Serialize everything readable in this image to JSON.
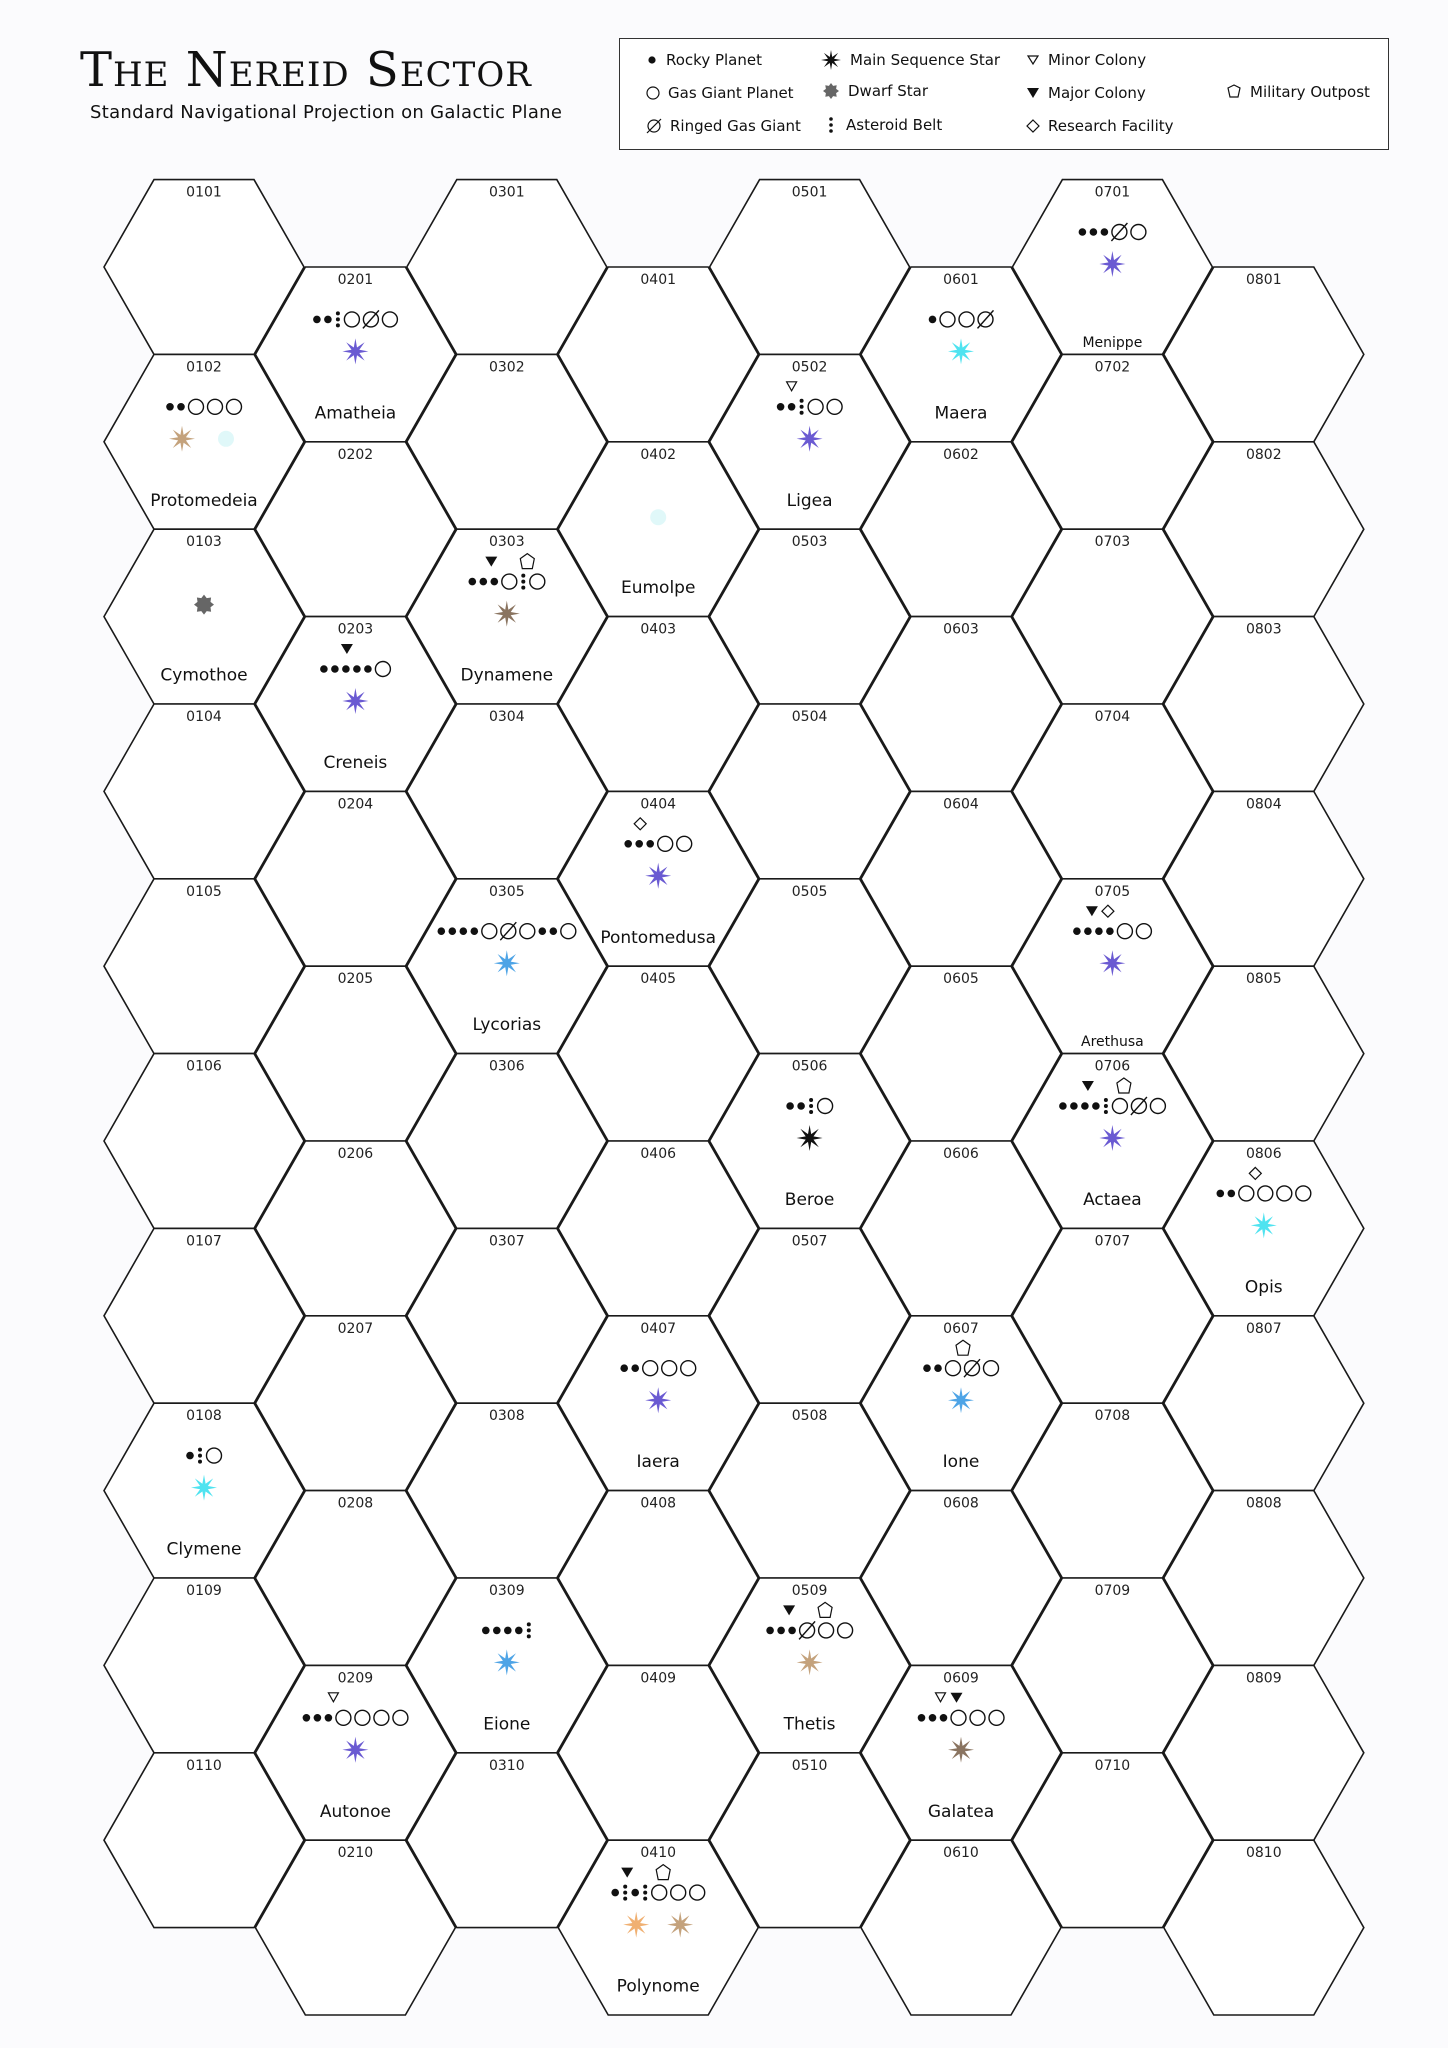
{
  "header": {
    "title": "The Nereid Sector",
    "subtitle": "Standard Navigational Projection on Galactic Plane"
  },
  "legend": {
    "items": [
      {
        "icon": "rocky-planet",
        "label": "Rocky Planet"
      },
      {
        "icon": "gas-giant",
        "label": "Gas Giant Planet"
      },
      {
        "icon": "ringed-gas-giant",
        "label": "Ringed Gas Giant"
      },
      {
        "icon": "main-sequence-star",
        "label": "Main Sequence Star"
      },
      {
        "icon": "dwarf-star",
        "label": "Dwarf Star"
      },
      {
        "icon": "asteroid-belt",
        "label": "Asteroid Belt"
      },
      {
        "icon": "minor-colony",
        "label": "Minor Colony"
      },
      {
        "icon": "major-colony",
        "label": "Major Colony"
      },
      {
        "icon": "research-facility",
        "label": "Research Facility"
      },
      {
        "icon": "military-outpost",
        "label": "Military Outpost"
      }
    ]
  },
  "colors": {
    "hex_stroke": "#1a1a1a",
    "star_violet": "#6a5ad2",
    "star_cyan": "#4fe3f0",
    "star_blue": "#4ea4e6",
    "star_tan": "#c4a27c",
    "star_brown": "#8a7460",
    "star_orange": "#f0b072",
    "star_black": "#111111",
    "dwarf_gray": "#666666"
  },
  "grid": {
    "columns": 8,
    "rows": 10
  },
  "systems": [
    {
      "hex": "0102",
      "name": "Protomedeia",
      "planets": [
        "rocky",
        "rocky",
        "gas",
        "gas",
        "gas"
      ],
      "markers": [],
      "stars": [
        "tan",
        "faint-cyan"
      ]
    },
    {
      "hex": "0103",
      "name": "Cymothoe",
      "planets": [],
      "markers": [],
      "stars": [
        "dwarf"
      ]
    },
    {
      "hex": "0108",
      "name": "Clymene",
      "planets": [
        "rocky",
        "belt",
        "gas"
      ],
      "markers": [],
      "stars": [
        "cyan"
      ]
    },
    {
      "hex": "0201",
      "name": "Amatheia",
      "planets": [
        "rocky",
        "rocky",
        "belt",
        "gas",
        "ringed",
        "gas"
      ],
      "markers": [],
      "stars": [
        "violet"
      ]
    },
    {
      "hex": "0203",
      "name": "Creneis",
      "planets": [
        "rocky",
        "rocky",
        "rocky",
        "rocky",
        "rocky",
        "gas"
      ],
      "markers": [
        "major-colony"
      ],
      "stars": [
        "violet"
      ]
    },
    {
      "hex": "0209",
      "name": "Autonoe",
      "planets": [
        "rocky",
        "rocky",
        "rocky",
        "gas",
        "gas",
        "gas",
        "gas"
      ],
      "markers": [
        "minor-colony"
      ],
      "stars": [
        "violet"
      ]
    },
    {
      "hex": "0303",
      "name": "Dynamene",
      "planets": [
        "rocky",
        "rocky",
        "rocky",
        "gas",
        "belt",
        "gas"
      ],
      "markers": [
        "major-colony",
        "military-outpost"
      ],
      "stars": [
        "brown"
      ]
    },
    {
      "hex": "0305",
      "name": "Lycorias",
      "planets": [
        "rocky",
        "rocky",
        "rocky",
        "rocky",
        "gas",
        "ringed",
        "gas",
        "rocky",
        "rocky",
        "gas"
      ],
      "markers": [],
      "stars": [
        "blue"
      ]
    },
    {
      "hex": "0309",
      "name": "Eione",
      "planets": [
        "rocky",
        "rocky",
        "rocky",
        "rocky",
        "belt"
      ],
      "markers": [],
      "stars": [
        "blue"
      ]
    },
    {
      "hex": "0402",
      "name": "Eumolpe",
      "planets": [],
      "markers": [],
      "stars": [
        "faint-cyan"
      ]
    },
    {
      "hex": "0404",
      "name": "Pontomedusa",
      "planets": [
        "rocky",
        "rocky",
        "rocky",
        "gas",
        "gas"
      ],
      "markers": [
        "research-facility"
      ],
      "stars": [
        "violet"
      ]
    },
    {
      "hex": "0407",
      "name": "Iaera",
      "planets": [
        "rocky",
        "rocky",
        "gas",
        "gas",
        "gas"
      ],
      "markers": [],
      "stars": [
        "violet"
      ]
    },
    {
      "hex": "0410",
      "name": "Polynome",
      "planets": [
        "rocky",
        "belt",
        "rocky",
        "belt",
        "gas",
        "gas",
        "gas"
      ],
      "markers": [
        "major-colony",
        "military-outpost"
      ],
      "stars": [
        "orange",
        "tan"
      ]
    },
    {
      "hex": "0502",
      "name": "Ligea",
      "planets": [
        "rocky",
        "rocky",
        "belt",
        "gas",
        "gas"
      ],
      "markers": [
        "minor-colony"
      ],
      "stars": [
        "violet"
      ]
    },
    {
      "hex": "0506",
      "name": "Beroe",
      "planets": [
        "rocky",
        "rocky",
        "belt",
        "gas"
      ],
      "markers": [],
      "stars": [
        "black"
      ]
    },
    {
      "hex": "0509",
      "name": "Thetis",
      "planets": [
        "rocky",
        "rocky",
        "rocky",
        "ringed",
        "gas",
        "gas"
      ],
      "markers": [
        "major-colony",
        "military-outpost"
      ],
      "stars": [
        "tan"
      ]
    },
    {
      "hex": "0601",
      "name": "Maera",
      "planets": [
        "rocky",
        "gas",
        "gas",
        "ringed"
      ],
      "markers": [],
      "stars": [
        "cyan"
      ]
    },
    {
      "hex": "0607",
      "name": "Ione",
      "planets": [
        "rocky",
        "rocky",
        "gas",
        "ringed",
        "gas"
      ],
      "markers": [
        "military-outpost"
      ],
      "stars": [
        "blue"
      ]
    },
    {
      "hex": "0609",
      "name": "Galatea",
      "planets": [
        "rocky",
        "rocky",
        "rocky",
        "gas",
        "gas",
        "gas"
      ],
      "markers": [
        "minor-colony",
        "major-colony"
      ],
      "stars": [
        "brown"
      ]
    },
    {
      "hex": "0701",
      "name": "Menippe",
      "planets": [
        "rocky",
        "rocky",
        "rocky",
        "ringed",
        "gas"
      ],
      "markers": [],
      "stars": [
        "violet"
      ]
    },
    {
      "hex": "0705",
      "name": "Arethusa",
      "planets": [
        "rocky",
        "rocky",
        "rocky",
        "rocky",
        "gas",
        "gas"
      ],
      "markers": [
        "major-colony",
        "research-facility"
      ],
      "stars": [
        "violet"
      ]
    },
    {
      "hex": "0706",
      "name": "Actaea",
      "planets": [
        "rocky",
        "rocky",
        "rocky",
        "rocky",
        "belt",
        "gas",
        "ringed",
        "gas"
      ],
      "markers": [
        "major-colony",
        "military-outpost"
      ],
      "stars": [
        "violet"
      ]
    },
    {
      "hex": "0806",
      "name": "Opis",
      "planets": [
        "rocky",
        "rocky",
        "gas",
        "gas",
        "gas",
        "gas"
      ],
      "markers": [
        "research-facility"
      ],
      "stars": [
        "cyan"
      ]
    }
  ]
}
